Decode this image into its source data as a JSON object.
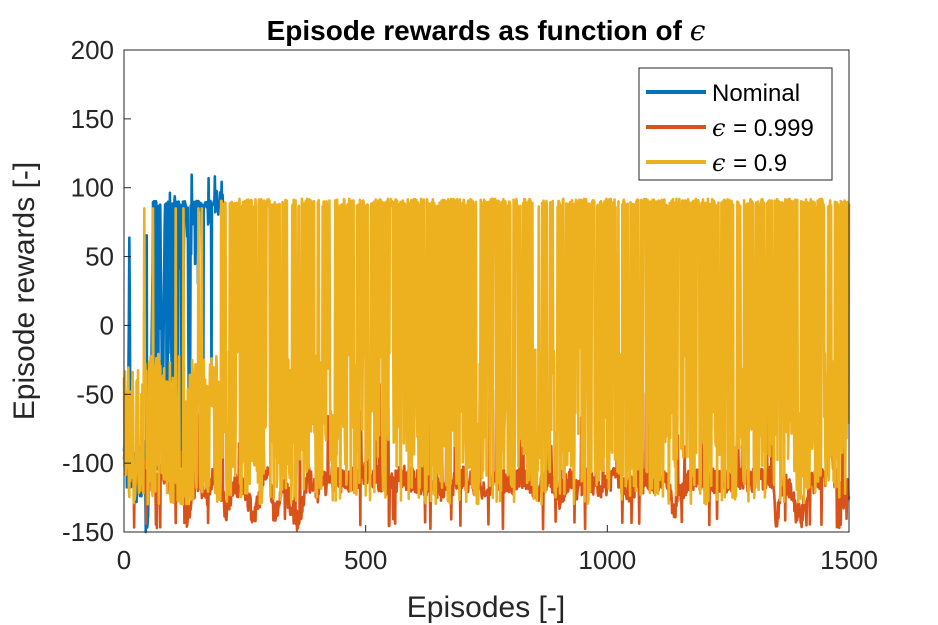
{
  "chart_data": {
    "type": "line",
    "title": "Episode rewards as function of ",
    "title_symbol": "ϵ",
    "xlabel": "Episodes [-]",
    "ylabel": "Episode rewards [-]",
    "xlim": [
      0,
      1500
    ],
    "ylim": [
      -150,
      200
    ],
    "x_ticks": [
      0,
      500,
      1000,
      1500
    ],
    "y_ticks": [
      -150,
      -100,
      -50,
      0,
      50,
      100,
      150,
      200
    ],
    "grid": true,
    "legend_position": "top-right",
    "series": [
      {
        "name": "Nominal",
        "color": "#0072BD",
        "x_range": [
          0,
          205
        ],
        "keypoints": [
          [
            0,
            -100
          ],
          [
            3,
            -85
          ],
          [
            8,
            -110
          ],
          [
            11,
            65
          ],
          [
            14,
            -130
          ],
          [
            17,
            -85
          ],
          [
            20,
            -100
          ],
          [
            25,
            -120
          ],
          [
            30,
            -90
          ],
          [
            35,
            -115
          ],
          [
            40,
            -80
          ],
          [
            45,
            -140
          ],
          [
            50,
            -120
          ],
          [
            55,
            -100
          ],
          [
            60,
            89
          ],
          [
            65,
            -60
          ],
          [
            70,
            -100
          ],
          [
            75,
            88
          ],
          [
            80,
            -90
          ],
          [
            85,
            89
          ],
          [
            90,
            -110
          ],
          [
            95,
            88
          ],
          [
            100,
            -80
          ],
          [
            105,
            90
          ],
          [
            110,
            -100
          ],
          [
            115,
            89
          ],
          [
            120,
            -95
          ],
          [
            125,
            90
          ],
          [
            130,
            89
          ],
          [
            135,
            -80
          ],
          [
            140,
            90
          ],
          [
            145,
            89
          ],
          [
            150,
            -70
          ],
          [
            155,
            90
          ],
          [
            160,
            88
          ],
          [
            165,
            -90
          ],
          [
            170,
            90
          ],
          [
            175,
            89
          ],
          [
            180,
            -60
          ],
          [
            185,
            89
          ],
          [
            190,
            90
          ],
          [
            195,
            88
          ],
          [
            200,
            89
          ],
          [
            205,
            88
          ]
        ]
      },
      {
        "name": "= 0.999",
        "symbol": "ϵ",
        "color": "#D95319",
        "keypoints": [
          [
            0,
            -90
          ],
          [
            20,
            -110
          ],
          [
            40,
            -100
          ],
          [
            60,
            -115
          ],
          [
            80,
            -105
          ],
          [
            100,
            -120
          ],
          [
            120,
            -100
          ],
          [
            135,
            -140
          ],
          [
            150,
            -110
          ],
          [
            170,
            -125
          ],
          [
            190,
            -105
          ],
          [
            210,
            -135
          ],
          [
            230,
            -115
          ],
          [
            250,
            -120
          ],
          [
            270,
            -140
          ],
          [
            290,
            -110
          ],
          [
            300,
            -100
          ],
          [
            310,
            -140
          ],
          [
            330,
            -115
          ],
          [
            360,
            -145
          ],
          [
            380,
            -110
          ],
          [
            400,
            -120
          ],
          [
            430,
            -110
          ],
          [
            460,
            -115
          ],
          [
            500,
            -105
          ],
          [
            540,
            -115
          ],
          [
            580,
            -110
          ],
          [
            620,
            -115
          ],
          [
            660,
            -120
          ],
          [
            700,
            -110
          ],
          [
            740,
            -120
          ],
          [
            770,
            -110
          ],
          [
            800,
            -115
          ],
          [
            830,
            -110
          ],
          [
            860,
            -120
          ],
          [
            880,
            -108
          ],
          [
            900,
            -125
          ],
          [
            920,
            -112
          ],
          [
            940,
            -120
          ],
          [
            960,
            -110
          ],
          [
            980,
            -118
          ],
          [
            1000,
            -115
          ],
          [
            1020,
            -110
          ],
          [
            1040,
            -120
          ],
          [
            1060,
            -115
          ],
          [
            1080,
            -112
          ],
          [
            1100,
            -115
          ],
          [
            1120,
            -110
          ],
          [
            1140,
            -135
          ],
          [
            1160,
            -115
          ],
          [
            1180,
            -112
          ],
          [
            1200,
            -115
          ],
          [
            1220,
            -113
          ],
          [
            1240,
            -112
          ],
          [
            1260,
            -113
          ],
          [
            1280,
            -112
          ],
          [
            1300,
            -112
          ],
          [
            1320,
            -113
          ],
          [
            1340,
            -110
          ],
          [
            1350,
            -145
          ],
          [
            1360,
            -115
          ],
          [
            1380,
            -120
          ],
          [
            1400,
            -140
          ],
          [
            1420,
            -115
          ],
          [
            1440,
            -110
          ],
          [
            1450,
            -115
          ],
          [
            1460,
            -70
          ],
          [
            1470,
            -110
          ],
          [
            1480,
            -120
          ],
          [
            1490,
            -125
          ],
          [
            1500,
            -118
          ]
        ]
      },
      {
        "name": "= 0.9",
        "symbol": "ϵ",
        "color": "#EDB120",
        "keypoints": [
          [
            0,
            -105
          ],
          [
            25,
            -20
          ],
          [
            50,
            -110
          ],
          [
            70,
            -15
          ],
          [
            100,
            -130
          ],
          [
            140,
            -15
          ],
          [
            170,
            -120
          ],
          [
            190,
            -20
          ],
          [
            200,
            -75
          ],
          [
            230,
            85
          ],
          [
            260,
            -125
          ],
          [
            300,
            88
          ],
          [
            330,
            -130
          ],
          [
            360,
            90
          ],
          [
            400,
            -120
          ],
          [
            450,
            88
          ],
          [
            500,
            -110
          ],
          [
            550,
            90
          ],
          [
            600,
            -105
          ],
          [
            650,
            91
          ],
          [
            700,
            -100
          ],
          [
            750,
            90
          ],
          [
            800,
            -110
          ],
          [
            850,
            91
          ],
          [
            900,
            -100
          ],
          [
            950,
            90
          ],
          [
            1000,
            -105
          ],
          [
            1050,
            91
          ],
          [
            1100,
            -110
          ],
          [
            1150,
            90
          ],
          [
            1200,
            -100
          ],
          [
            1250,
            91
          ],
          [
            1300,
            -110
          ],
          [
            1350,
            90
          ],
          [
            1400,
            -100
          ],
          [
            1450,
            91
          ],
          [
            1500,
            -105
          ]
        ]
      }
    ]
  }
}
